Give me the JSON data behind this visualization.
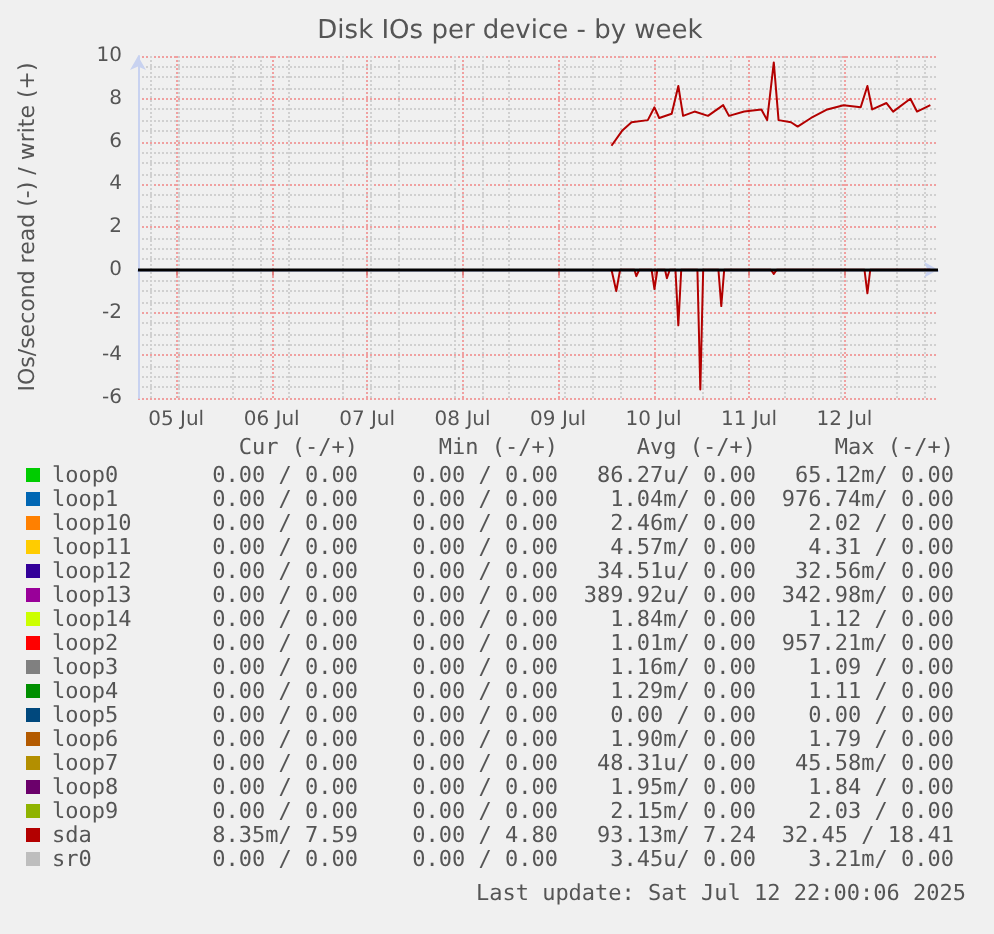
{
  "chart_data": {
    "type": "line",
    "title": "Disk IOs per device - by week",
    "ylabel": "IOs/second read (-) / write (+)",
    "xlim": [
      "2025-07-04T14:24",
      "2025-07-12T23:31"
    ],
    "xticks": [
      {
        "value": "2025-07-05",
        "label": "05 Jul"
      },
      {
        "value": "2025-07-06",
        "label": "06 Jul"
      },
      {
        "value": "2025-07-07",
        "label": "07 Jul"
      },
      {
        "value": "2025-07-08",
        "label": "08 Jul"
      },
      {
        "value": "2025-07-09",
        "label": "09 Jul"
      },
      {
        "value": "2025-07-10",
        "label": "10 Jul"
      },
      {
        "value": "2025-07-11",
        "label": "11 Jul"
      },
      {
        "value": "2025-07-12",
        "label": "12 Jul"
      }
    ],
    "ylim": [
      -6,
      10
    ],
    "yticks": [
      -6,
      -4,
      -2,
      0,
      2,
      4,
      6,
      8,
      10
    ],
    "grid": true,
    "marker": "none",
    "line_style": "solid",
    "legend": "bottom",
    "ref_lines": [
      {
        "axis": "y",
        "value": 0,
        "color": "#000000"
      }
    ],
    "series": [
      {
        "name": "loop0",
        "color": "#00cc00"
      },
      {
        "name": "loop1",
        "color": "#0066b3"
      },
      {
        "name": "loop10",
        "color": "#ff8000"
      },
      {
        "name": "loop11",
        "color": "#ffcc00"
      },
      {
        "name": "loop12",
        "color": "#330099"
      },
      {
        "name": "loop13",
        "color": "#990099"
      },
      {
        "name": "loop14",
        "color": "#ccff00"
      },
      {
        "name": "loop2",
        "color": "#ff0000"
      },
      {
        "name": "loop3",
        "color": "#808080"
      },
      {
        "name": "loop4",
        "color": "#008f00"
      },
      {
        "name": "loop5",
        "color": "#00487d"
      },
      {
        "name": "loop6",
        "color": "#b35a00"
      },
      {
        "name": "loop7",
        "color": "#b38f00"
      },
      {
        "name": "loop8",
        "color": "#6b006b"
      },
      {
        "name": "loop9",
        "color": "#8fb300"
      },
      {
        "name": "sda",
        "color": "#b30000",
        "x": [
          "2025-07-09T13:26",
          "2025-07-09T16:05",
          "2025-07-09T18:29",
          "2025-07-09T22:34",
          "2025-07-10T00:14",
          "2025-07-10T01:26",
          "2025-07-10T04:34",
          "2025-07-10T06:14",
          "2025-07-10T07:26",
          "2025-07-10T10:19",
          "2025-07-10T13:41",
          "2025-07-10T17:31",
          "2025-07-10T18:58",
          "2025-07-10T22:48",
          "2025-07-11T03:07",
          "2025-07-11T04:34",
          "2025-07-11T06:14",
          "2025-07-11T07:26",
          "2025-07-11T10:34",
          "2025-07-11T12:14",
          "2025-07-11T15:36",
          "2025-07-11T19:41",
          "2025-07-11T23:46",
          "2025-07-12T04:05",
          "2025-07-12T05:46",
          "2025-07-12T06:58",
          "2025-07-12T10:34",
          "2025-07-12T12:14",
          "2025-07-12T16:34",
          "2025-07-12T18:14",
          "2025-07-12T21:36"
        ],
        "values": [
          5.8,
          6.5,
          6.9,
          7,
          7.6,
          7.1,
          7.3,
          8.6,
          7.2,
          7.4,
          7.2,
          7.7,
          7.2,
          7.4,
          7.5,
          7,
          9.7,
          7,
          6.9,
          6.7,
          7.1,
          7.5,
          7.7,
          7.6,
          8.6,
          7.5,
          7.8,
          7.4,
          8,
          7.4,
          7.7
        ]
      },
      {
        "name": "sr0",
        "color": "#bebebe"
      },
      {
        "color": "#b30000",
        "x": [
          "2025-07-09T13:26",
          "2025-07-09T14:38",
          "2025-07-09T15:36",
          "2025-07-09T19:12",
          "2025-07-09T19:41",
          "2025-07-09T20:24",
          "2025-07-09T23:31",
          "2025-07-10T00:14",
          "2025-07-10T00:58",
          "2025-07-10T02:53",
          "2025-07-10T03:22",
          "2025-07-10T04:05",
          "2025-07-10T05:31",
          "2025-07-10T06:14",
          "2025-07-10T06:58",
          "2025-07-10T11:02",
          "2025-07-10T11:46",
          "2025-07-10T12:29",
          "2025-07-10T16:19",
          "2025-07-10T17:02",
          "2025-07-10T17:46",
          "2025-07-11T05:31",
          "2025-07-11T06:14",
          "2025-07-11T06:58",
          "2025-07-12T05:02",
          "2025-07-12T05:46",
          "2025-07-12T06:29",
          "2025-07-12T21:36"
        ],
        "values": [
          0,
          -1,
          0,
          0,
          -0.3,
          0,
          0,
          -0.9,
          0,
          0,
          -0.4,
          0,
          0,
          -2.6,
          0,
          0,
          -5.6,
          0,
          0,
          -1.7,
          0,
          0,
          -0.2,
          0,
          0,
          -1.1,
          0,
          0
        ]
      }
    ],
    "annotations": [
      "Cur (-/+)   Min (-/+)   Avg (-/+)   Max (-/+)",
      "0.00 / 0.00   0.00 / 0.00   86.27u/ 0.00   65.12m/ 0.00",
      "0.00 / 0.00   0.00 / 0.00   1.04m/ 0.00   976.74m/ 0.00",
      "0.00 / 0.00   0.00 / 0.00   2.46m/ 0.00   2.02 / 0.00",
      "0.00 / 0.00   0.00 / 0.00   4.57m/ 0.00   4.31 / 0.00",
      "0.00 / 0.00   0.00 / 0.00   34.51u/ 0.00   32.56m/ 0.00",
      "0.00 / 0.00   0.00 / 0.00   389.92u/ 0.00   342.98m/ 0.00",
      "0.00 / 0.00   0.00 / 0.00   1.84m/ 0.00   1.12 / 0.00",
      "0.00 / 0.00   0.00 / 0.00   1.01m/ 0.00   957.21m/ 0.00",
      "0.00 / 0.00   0.00 / 0.00   1.16m/ 0.00   1.09 / 0.00",
      "0.00 / 0.00   0.00 / 0.00   1.29m/ 0.00   1.11 / 0.00",
      "0.00 / 0.00   0.00 / 0.00   0.00 / 0.00   0.00 / 0.00",
      "0.00 / 0.00   0.00 / 0.00   1.90m/ 0.00   1.79 / 0.00",
      "0.00 / 0.00   0.00 / 0.00   48.31u/ 0.00   45.58m/ 0.00",
      "0.00 / 0.00   0.00 / 0.00   1.95m/ 0.00   1.84 / 0.00",
      "0.00 / 0.00   0.00 / 0.00   2.15m/ 0.00   2.03 / 0.00",
      "8.35m/ 7.59   0.00 / 4.80   93.13m/ 7.24   32.45 / 18.41",
      "0.00 / 0.00   0.00 / 0.00   3.45u/ 0.00   3.21m/ 0.00",
      "Last update: Sat Jul 12 22:00:06 2025"
    ]
  }
}
